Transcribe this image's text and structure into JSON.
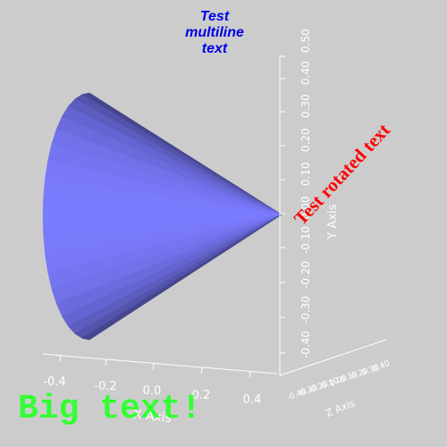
{
  "title": {
    "line1": "Test",
    "line2": "multiline",
    "line3": "text",
    "color": "#0000e6"
  },
  "big_text": {
    "text": "Big text!",
    "color": "#33ff33"
  },
  "rotated_text": {
    "text": "Test rotated text",
    "color": "#ff0000"
  },
  "x_axis": {
    "label": "X Axis",
    "ticks": [
      "-0.4",
      "-0.2",
      "0.0",
      "0.2",
      "0.4"
    ]
  },
  "y_axis": {
    "label": "Y Axis",
    "ticks": [
      "-0.40",
      "-0.30",
      "-0.20",
      "-0.10",
      "0.00",
      "0.10",
      "0.20",
      "0.30",
      "0.40",
      "0.50"
    ]
  },
  "z_axis": {
    "label": "Z Axis",
    "ticks": [
      "-0.40",
      "-0.30",
      "-0.20",
      "-0.10",
      "0.00",
      "0.10",
      "0.20",
      "0.30",
      "0.40"
    ]
  },
  "cone": {
    "base_color": "#7b7bff",
    "shadow_color": "#202040",
    "facets": 20
  }
}
